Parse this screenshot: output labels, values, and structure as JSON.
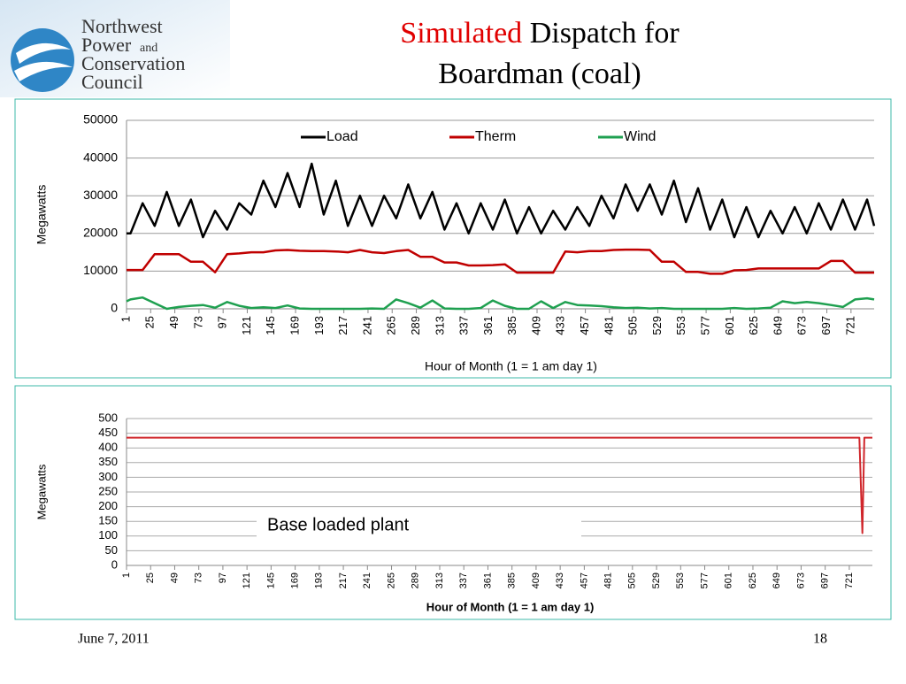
{
  "logo": {
    "lines": [
      "Northwest",
      "Power",
      "and",
      "Conservation",
      "Council"
    ]
  },
  "title": {
    "emphasis": "Simulated",
    "rest": "Dispatch for",
    "line2": "Boardman (coal)"
  },
  "footer": {
    "date": "June 7, 2011",
    "page": "18"
  },
  "chart_data": [
    {
      "type": "line",
      "y_label": "Megawatts",
      "x_label": "Hour of Month (1 = 1 am day 1)",
      "legend": "top",
      "grid": true,
      "x": [
        1,
        5,
        17,
        29,
        41,
        53,
        65,
        77,
        89,
        101,
        113,
        125,
        137,
        149,
        161,
        173,
        185,
        197,
        209,
        221,
        233,
        245,
        257,
        269,
        281,
        293,
        305,
        317,
        329,
        341,
        353,
        365,
        377,
        389,
        401,
        413,
        425,
        437,
        449,
        461,
        473,
        485,
        497,
        509,
        521,
        533,
        545,
        557,
        569,
        581,
        593,
        605,
        617,
        629,
        641,
        653,
        665,
        677,
        689,
        701,
        713,
        725,
        737,
        744
      ],
      "xlim": [
        1,
        744
      ],
      "xticks": [
        1,
        25,
        49,
        73,
        97,
        121,
        145,
        169,
        193,
        217,
        241,
        265,
        289,
        313,
        337,
        361,
        385,
        409,
        433,
        457,
        481,
        505,
        529,
        553,
        577,
        601,
        625,
        649,
        673,
        697,
        721
      ],
      "ylim": [
        0,
        50000
      ],
      "yticks": [
        0,
        10000,
        20000,
        30000,
        40000,
        50000
      ],
      "series": [
        {
          "name": "Load",
          "color": "#000000",
          "values": [
            20000,
            20000,
            28000,
            22000,
            31000,
            22000,
            29000,
            19000,
            26000,
            21000,
            28000,
            25000,
            34000,
            27000,
            36000,
            27000,
            38500,
            25000,
            34000,
            22000,
            30000,
            22000,
            30000,
            24000,
            33000,
            24000,
            31000,
            21000,
            28000,
            20000,
            28000,
            21000,
            29000,
            20000,
            27000,
            20000,
            26000,
            21000,
            27000,
            22000,
            30000,
            24000,
            33000,
            26000,
            33000,
            25000,
            34000,
            23000,
            32000,
            21000,
            29000,
            19000,
            27000,
            19000,
            26000,
            20000,
            27000,
            20000,
            28000,
            21000,
            29000,
            21000,
            29000,
            22000
          ]
        },
        {
          "name": "Therm",
          "color": "#c00000",
          "values": [
            10300,
            10300,
            10300,
            14500,
            14500,
            14500,
            12500,
            12500,
            9700,
            14500,
            14700,
            15000,
            15000,
            15500,
            15600,
            15400,
            15300,
            15300,
            15200,
            15000,
            15600,
            15000,
            14800,
            15300,
            15600,
            13800,
            13800,
            12300,
            12300,
            11500,
            11500,
            11600,
            11800,
            9600,
            9600,
            9600,
            9600,
            15200,
            15000,
            15300,
            15300,
            15600,
            15700,
            15700,
            15600,
            12500,
            12500,
            9800,
            9800,
            9300,
            9300,
            10200,
            10300,
            10700,
            10700,
            10700,
            10700,
            10700,
            10700,
            12700,
            12700,
            9600,
            9600,
            9600
          ]
        },
        {
          "name": "Wind",
          "color": "#1fa050",
          "values": [
            2000,
            2500,
            3000,
            1500,
            0,
            500,
            800,
            1000,
            300,
            1800,
            800,
            200,
            400,
            200,
            900,
            100,
            0,
            0,
            0,
            0,
            0,
            100,
            0,
            2500,
            1500,
            300,
            2200,
            100,
            0,
            0,
            200,
            2200,
            800,
            0,
            0,
            2000,
            200,
            1800,
            1000,
            900,
            700,
            400,
            200,
            300,
            100,
            200,
            0,
            0,
            0,
            0,
            0,
            200,
            0,
            100,
            300,
            2000,
            1500,
            1800,
            1500,
            1000,
            500,
            2500,
            2800,
            2500
          ]
        }
      ]
    },
    {
      "type": "line",
      "y_label": "Megawatts",
      "x_label": "Hour of Month (1 = 1 am day 1)",
      "annotation": "Base loaded plant",
      "grid": true,
      "x": [
        1,
        731,
        734,
        736,
        744
      ],
      "xlim": [
        1,
        744
      ],
      "xticks": [
        1,
        25,
        49,
        73,
        97,
        121,
        145,
        169,
        193,
        217,
        241,
        265,
        289,
        313,
        337,
        361,
        385,
        409,
        433,
        457,
        481,
        505,
        529,
        553,
        577,
        601,
        625,
        649,
        673,
        697,
        721
      ],
      "ylim": [
        0,
        500
      ],
      "yticks": [
        0,
        50,
        100,
        150,
        200,
        250,
        300,
        350,
        400,
        450,
        500
      ],
      "series": [
        {
          "color": "#d0262b",
          "values": [
            435,
            435,
            110,
            435,
            435
          ]
        }
      ]
    }
  ]
}
